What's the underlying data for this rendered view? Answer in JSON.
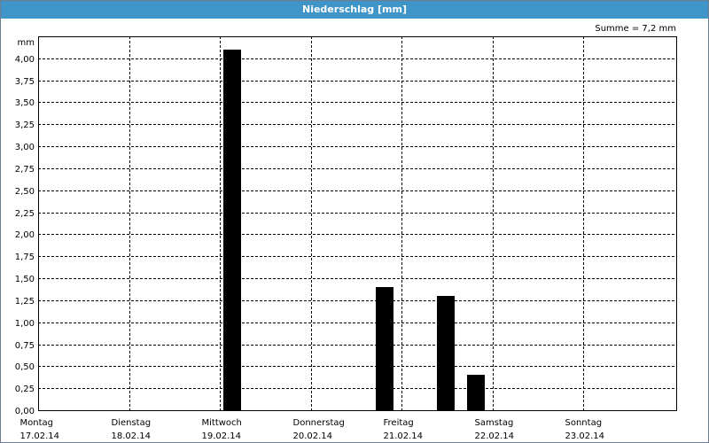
{
  "window": {
    "title": "Niederschlag [mm]"
  },
  "summary": {
    "label": "Summe = 7,2 mm"
  },
  "chart_data": {
    "type": "bar",
    "title": "Niederschlag [mm]",
    "ylabel": "mm",
    "ylim": [
      0,
      4.25
    ],
    "yticks": [
      "4,00",
      "3,75",
      "3,50",
      "3,25",
      "3,00",
      "2,75",
      "2,50",
      "2,25",
      "2,00",
      "1,75",
      "1,50",
      "1,25",
      "1,00",
      "0,75",
      "0,50",
      "0,25",
      "0,00"
    ],
    "xticks": [
      {
        "day": "Montag",
        "date": "17.02.14"
      },
      {
        "day": "Dienstag",
        "date": "18.02.14"
      },
      {
        "day": "Mittwoch",
        "date": "19.02.14"
      },
      {
        "day": "Donnerstag",
        "date": "20.02.14"
      },
      {
        "day": "Freitag",
        "date": "21.02.14"
      },
      {
        "day": "Samstag",
        "date": "22.02.14"
      },
      {
        "day": "Sonntag",
        "date": "23.02.14"
      }
    ],
    "bars": [
      {
        "x": 2.14,
        "value": 4.1
      },
      {
        "x": 3.81,
        "value": 1.4
      },
      {
        "x": 4.49,
        "value": 1.3
      },
      {
        "x": 4.82,
        "value": 0.4
      }
    ],
    "grid": true,
    "bar_color": "#000000"
  }
}
